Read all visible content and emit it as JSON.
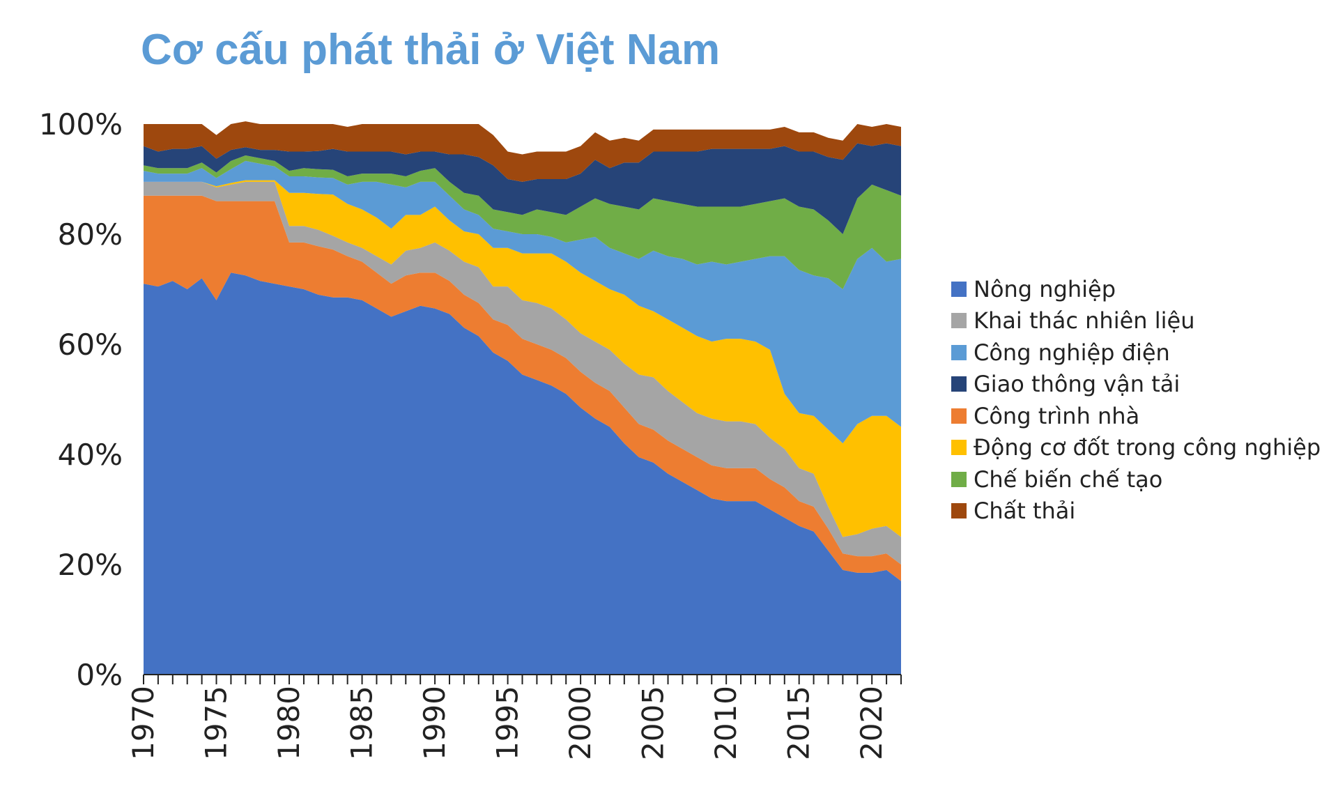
{
  "chart_data": {
    "type": "area",
    "stacked": true,
    "percent": true,
    "title": "Cơ cấu phát thải ở Việt Nam",
    "xlabel": "",
    "ylabel": "",
    "ylim": [
      0,
      100
    ],
    "yticks": [
      "0%",
      "20%",
      "40%",
      "60%",
      "80%",
      "100%"
    ],
    "xticks": [
      1970,
      1975,
      1980,
      1985,
      1990,
      1995,
      2000,
      2005,
      2010,
      2015,
      2020
    ],
    "grid": false,
    "legend_position": "right",
    "x": [
      1970,
      1971,
      1972,
      1973,
      1974,
      1975,
      1976,
      1977,
      1978,
      1979,
      1980,
      1981,
      1982,
      1983,
      1984,
      1985,
      1986,
      1987,
      1988,
      1989,
      1990,
      1991,
      1992,
      1993,
      1994,
      1995,
      1996,
      1997,
      1998,
      1999,
      2000,
      2001,
      2002,
      2003,
      2004,
      2005,
      2006,
      2007,
      2008,
      2009,
      2010,
      2011,
      2012,
      2013,
      2014,
      2015,
      2016,
      2017,
      2018,
      2019,
      2020,
      2021,
      2022
    ],
    "series": [
      {
        "name": "Nông nghiệp",
        "color": "#4472C4",
        "values": [
          71,
          70.5,
          71.5,
          70,
          72,
          68,
          73,
          72.5,
          71.5,
          71,
          70.5,
          70,
          69,
          68.5,
          68.5,
          68,
          66.5,
          65,
          66,
          67,
          66.5,
          65.5,
          63,
          61.5,
          58.5,
          57,
          54.5,
          53.5,
          52.5,
          51,
          48.5,
          46.5,
          45,
          42,
          39.5,
          38.5,
          36.5,
          35,
          33.5,
          32,
          31.5,
          31.5,
          31.5,
          30,
          28.5,
          27,
          26,
          22.5,
          19,
          18.5,
          18.5,
          19,
          17
        ]
      },
      {
        "name": "Công trình nhà",
        "color": "#ED7D31",
        "values": [
          16,
          16.5,
          15.5,
          17,
          15,
          18,
          13,
          13.5,
          14.5,
          15,
          8,
          8.5,
          8.8,
          8.7,
          7.5,
          7,
          6.5,
          6,
          6.5,
          6,
          6.5,
          6,
          6,
          6,
          6,
          6.5,
          6.5,
          6.5,
          6.5,
          6.5,
          6.5,
          6.5,
          6.5,
          6.5,
          6,
          6,
          6,
          6,
          6,
          6,
          6,
          6,
          6,
          5.5,
          5.5,
          4.5,
          4.5,
          4,
          3,
          3,
          3,
          3,
          3
        ]
      },
      {
        "name": "Khai thác nhiên liệu",
        "color": "#A5A5A5",
        "values": [
          2.5,
          2.5,
          2.5,
          2.5,
          2.5,
          2.5,
          3,
          3.5,
          3.5,
          3.5,
          3,
          3,
          3,
          2.5,
          2.5,
          2.5,
          3,
          3.5,
          4.5,
          4.5,
          5.5,
          5.5,
          6,
          6.5,
          6,
          7,
          7,
          7.5,
          7.5,
          7,
          7,
          7.5,
          7.5,
          8,
          9,
          9.5,
          9,
          8.5,
          8,
          8.5,
          8.5,
          8.5,
          8,
          7.5,
          7,
          6,
          6,
          4,
          3,
          4,
          5,
          5,
          5
        ]
      },
      {
        "name": "Động cơ đốt trong công nghiệp",
        "color": "#FFC000",
        "values": [
          0,
          0,
          0,
          0,
          0,
          0.2,
          0.3,
          0.3,
          0.3,
          0.3,
          6,
          6,
          6.5,
          7.5,
          7,
          7,
          7,
          6.5,
          6.5,
          6,
          6.5,
          5.5,
          5.5,
          6,
          7,
          7,
          8.5,
          9,
          10,
          10.5,
          11,
          11,
          11,
          12.5,
          12.5,
          12,
          13,
          13.5,
          14,
          14,
          15,
          15,
          15,
          16,
          10,
          10,
          10.5,
          14,
          17,
          20,
          20.5,
          20,
          20
        ]
      },
      {
        "name": "Công nghiệp điện",
        "color": "#5B9BD5",
        "values": [
          2,
          1.5,
          1.5,
          1.5,
          2.5,
          1.5,
          2.5,
          3.5,
          3,
          2.5,
          3,
          3,
          3,
          3,
          3.5,
          5,
          6.5,
          8,
          5,
          6,
          4.5,
          4.5,
          4,
          3.5,
          3.5,
          3,
          3.5,
          3.5,
          3,
          3.5,
          6,
          8,
          7.5,
          7.5,
          8.5,
          11,
          11.5,
          12.5,
          13,
          14.5,
          13.5,
          14,
          15,
          17,
          25,
          26,
          25.5,
          27.5,
          28,
          30,
          30.5,
          28,
          30.5
        ]
      },
      {
        "name": "Chế biến chế tạo",
        "color": "#70AD47",
        "values": [
          1,
          1,
          1,
          1,
          1,
          1,
          1.5,
          1,
          1,
          1,
          1,
          1.5,
          1.5,
          1.5,
          1.5,
          1.5,
          1.5,
          2,
          2,
          2,
          2.5,
          2.5,
          3,
          3.5,
          3.5,
          3.5,
          3.5,
          4.5,
          4.5,
          5,
          6,
          7,
          8,
          8.5,
          9,
          9.5,
          10,
          10,
          10.5,
          10,
          10.5,
          10,
          10,
          10,
          10.5,
          11.5,
          12,
          10.5,
          10,
          11,
          11.5,
          13,
          11.5
        ]
      },
      {
        "name": "Giao thông vận tải",
        "color": "#264478",
        "values": [
          3.5,
          3,
          3.5,
          3.5,
          3,
          2.5,
          2,
          1.5,
          1.5,
          2,
          3.5,
          3,
          3.3,
          3.8,
          4.5,
          4,
          4,
          4,
          4,
          3.5,
          3,
          5,
          7,
          7,
          8,
          6,
          6,
          5.5,
          6,
          6.5,
          6,
          7,
          6.5,
          8,
          8.5,
          8.5,
          9,
          9.5,
          10,
          10.5,
          10.5,
          10.5,
          10,
          9.5,
          9.5,
          10,
          10.5,
          11.5,
          13.5,
          10,
          7,
          8.5,
          9
        ]
      },
      {
        "name": "Chất thải",
        "color": "#9E480E",
        "values": [
          4,
          5,
          4.5,
          4.5,
          4,
          4.3,
          4.7,
          4.7,
          4.7,
          4.7,
          5,
          5,
          4.9,
          4.5,
          4.5,
          5,
          5,
          5,
          5.5,
          5,
          5,
          5.5,
          5.5,
          6,
          5.5,
          5,
          5,
          5,
          5,
          5,
          5,
          5,
          5,
          4.5,
          4,
          4,
          4,
          4,
          4,
          3.5,
          3.5,
          3.5,
          3.5,
          3.5,
          3.5,
          3.5,
          3.5,
          3.5,
          3.5,
          3.5,
          3.5,
          3.5,
          3.5
        ]
      }
    ],
    "legend_order": [
      "Nông nghiệp",
      "Khai thác nhiên liệu",
      "Công nghiệp điện",
      "Giao thông vận tải",
      "Công trình nhà",
      "Động cơ đốt trong công nghiệp",
      "Chế biến chế tạo",
      "Chất thải"
    ]
  }
}
